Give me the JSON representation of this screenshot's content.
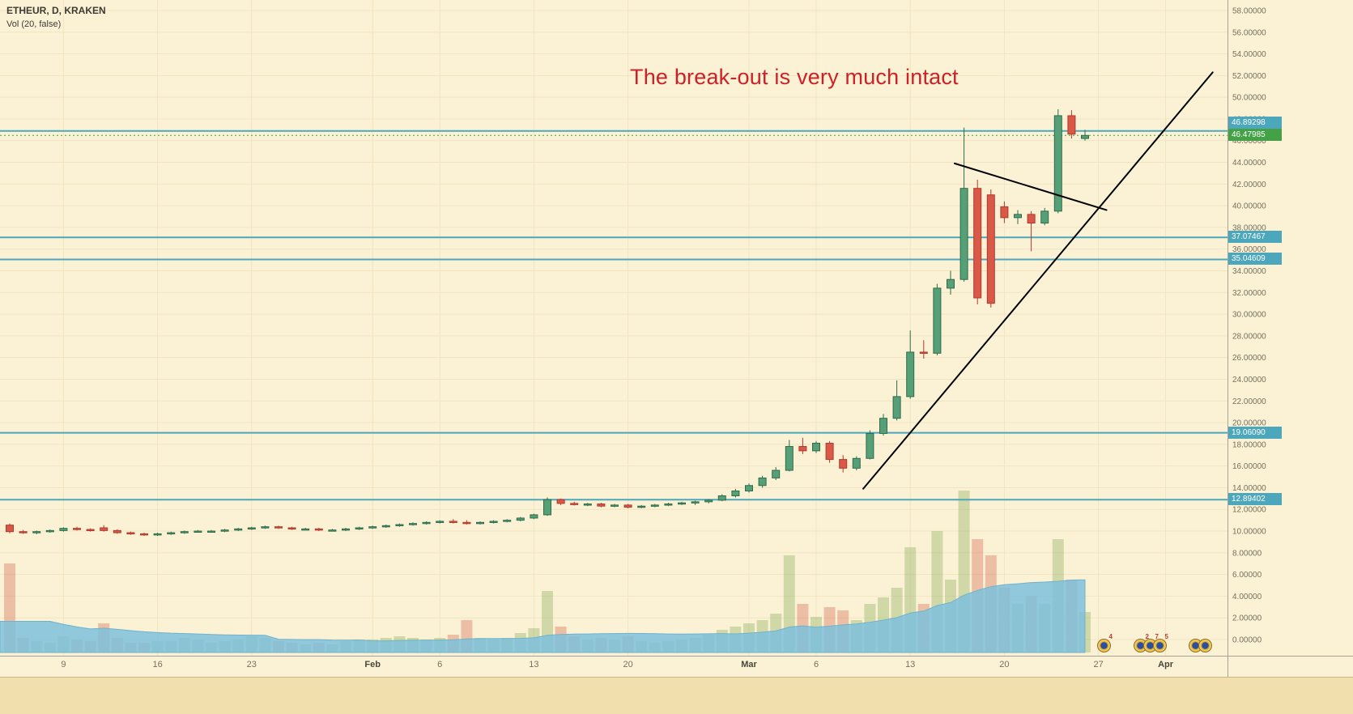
{
  "legend": {
    "symbol": "ETHEUR, D, KRAKEN",
    "indicator": "Vol (20, false)"
  },
  "annotation": {
    "text": "The break-out is very much intact",
    "color": "#cc2127"
  },
  "colors": {
    "background": "#fbf2d5",
    "grid": "#f0e4c0",
    "up": "#55a077",
    "up_border": "#2f6b4b",
    "down": "#d95848",
    "down_border": "#b03a2c",
    "vol_up": "rgba(128,168,82,0.35)",
    "vol_down": "rgba(214,104,84,0.38)",
    "vol_ma_fill": "rgba(126,193,220,0.85)",
    "vol_ma_edge": "#6fb3ce",
    "hline": "#4da7bc",
    "last_line": "#44a146",
    "trend": "#000000",
    "axis_text": "#75705f",
    "axis_text_major": "#4a463c",
    "separator": "#a9a296",
    "footer": "#f1dfae"
  },
  "price_axis": {
    "min": 0,
    "max": 58,
    "step": 2,
    "decimals": 5,
    "tags": [
      {
        "text": "46.89298",
        "value": 46.89298,
        "bg": "#4da7bc",
        "kind": "line"
      },
      {
        "text": "46.47985",
        "value": 46.47985,
        "bg": "#44a146",
        "kind": "last-price"
      },
      {
        "text": "37.07467",
        "value": 37.07467,
        "bg": "#4da7bc",
        "kind": "line"
      },
      {
        "text": "35.04609",
        "value": 35.04609,
        "bg": "#4da7bc",
        "kind": "line"
      },
      {
        "text": "19.06090",
        "value": 19.0609,
        "bg": "#4da7bc",
        "kind": "line"
      },
      {
        "text": "12.89402",
        "value": 12.89402,
        "bg": "#4da7bc",
        "kind": "line"
      }
    ]
  },
  "time_axis": {
    "labels": [
      {
        "label": "9",
        "day": 4,
        "major": false
      },
      {
        "label": "16",
        "day": 11,
        "major": false
      },
      {
        "label": "23",
        "day": 18,
        "major": false
      },
      {
        "label": "Feb",
        "day": 27,
        "major": true
      },
      {
        "label": "6",
        "day": 32,
        "major": false
      },
      {
        "label": "13",
        "day": 39,
        "major": false
      },
      {
        "label": "20",
        "day": 46,
        "major": false
      },
      {
        "label": "Mar",
        "day": 55,
        "major": true
      },
      {
        "label": "6",
        "day": 60,
        "major": false
      },
      {
        "label": "13",
        "day": 67,
        "major": false
      },
      {
        "label": "20",
        "day": 74,
        "major": false
      },
      {
        "label": "27",
        "day": 81,
        "major": false
      },
      {
        "label": "Apr",
        "day": 86,
        "major": true
      }
    ]
  },
  "chart_data": {
    "type": "candlestick",
    "title": "ETHEUR, D, KRAKEN",
    "indicator": "Vol (20, false)",
    "ylim": [
      0,
      58
    ],
    "volume_ma_length": 20,
    "last_price": {
      "value": 46.47985,
      "label": "46.47985"
    },
    "horizontal_lines": [
      {
        "price": 46.89298,
        "label": "46.89298"
      },
      {
        "price": 37.07467,
        "label": "37.07467"
      },
      {
        "price": 35.04609,
        "label": "35.04609"
      },
      {
        "price": 19.0609,
        "label": "19.06090"
      },
      {
        "price": 12.89402,
        "label": "12.89402"
      }
    ],
    "trendlines": [
      {
        "from_day": 63.5,
        "from_price": 13.9,
        "to_day": 89.5,
        "to_price": 52.3
      },
      {
        "from_day": 70.3,
        "from_price": 43.9,
        "to_day": 81.6,
        "to_price": 39.6
      }
    ],
    "candles": [
      {
        "t": "Jan 5",
        "o": 10.55,
        "h": 10.7,
        "l": 9.8,
        "c": 9.95,
        "v": 55
      },
      {
        "t": "Jan 6",
        "o": 9.95,
        "h": 10.1,
        "l": 9.75,
        "c": 9.85,
        "v": 9
      },
      {
        "t": "Jan 7",
        "o": 9.85,
        "h": 10.05,
        "l": 9.7,
        "c": 9.95,
        "v": 7
      },
      {
        "t": "Jan 8",
        "o": 9.95,
        "h": 10.15,
        "l": 9.85,
        "c": 10.05,
        "v": 6
      },
      {
        "t": "Jan 9",
        "o": 10.05,
        "h": 10.35,
        "l": 9.95,
        "c": 10.25,
        "v": 10
      },
      {
        "t": "Jan 10",
        "o": 10.25,
        "h": 10.4,
        "l": 10.05,
        "c": 10.15,
        "v": 8
      },
      {
        "t": "Jan 11",
        "o": 10.15,
        "h": 10.25,
        "l": 9.95,
        "c": 10.05,
        "v": 7
      },
      {
        "t": "Jan 12",
        "o": 10.3,
        "h": 10.55,
        "l": 9.95,
        "c": 10.05,
        "v": 18
      },
      {
        "t": "Jan 13",
        "o": 10.05,
        "h": 10.15,
        "l": 9.75,
        "c": 9.85,
        "v": 9
      },
      {
        "t": "Jan 14",
        "o": 9.85,
        "h": 9.95,
        "l": 9.65,
        "c": 9.75,
        "v": 6
      },
      {
        "t": "Jan 15",
        "o": 9.75,
        "h": 9.85,
        "l": 9.55,
        "c": 9.65,
        "v": 6
      },
      {
        "t": "Jan 16",
        "o": 9.65,
        "h": 9.85,
        "l": 9.55,
        "c": 9.75,
        "v": 7
      },
      {
        "t": "Jan 17",
        "o": 9.75,
        "h": 9.95,
        "l": 9.65,
        "c": 9.85,
        "v": 7
      },
      {
        "t": "Jan 18",
        "o": 9.85,
        "h": 10.05,
        "l": 9.75,
        "c": 9.95,
        "v": 9
      },
      {
        "t": "Jan 19",
        "o": 9.95,
        "h": 10.1,
        "l": 9.85,
        "c": 10.0,
        "v": 8
      },
      {
        "t": "Jan 20",
        "o": 10.0,
        "h": 10.1,
        "l": 9.9,
        "c": 10.0,
        "v": 6
      },
      {
        "t": "Jan 21",
        "o": 10.0,
        "h": 10.2,
        "l": 9.9,
        "c": 10.1,
        "v": 7
      },
      {
        "t": "Jan 22",
        "o": 10.1,
        "h": 10.3,
        "l": 10.0,
        "c": 10.2,
        "v": 8
      },
      {
        "t": "Jan 23",
        "o": 10.2,
        "h": 10.4,
        "l": 10.1,
        "c": 10.3,
        "v": 10
      },
      {
        "t": "Jan 24",
        "o": 10.3,
        "h": 10.5,
        "l": 10.2,
        "c": 10.4,
        "v": 9
      },
      {
        "t": "Jan 25",
        "o": 10.4,
        "h": 10.5,
        "l": 10.2,
        "c": 10.3,
        "v": 7
      },
      {
        "t": "Jan 26",
        "o": 10.3,
        "h": 10.4,
        "l": 10.1,
        "c": 10.2,
        "v": 6
      },
      {
        "t": "Jan 27",
        "o": 10.2,
        "h": 10.3,
        "l": 10.1,
        "c": 10.2,
        "v": 5
      },
      {
        "t": "Jan 28",
        "o": 10.2,
        "h": 10.3,
        "l": 10.0,
        "c": 10.1,
        "v": 6
      },
      {
        "t": "Jan 29",
        "o": 10.1,
        "h": 10.2,
        "l": 10.0,
        "c": 10.1,
        "v": 5
      },
      {
        "t": "Jan 30",
        "o": 10.1,
        "h": 10.3,
        "l": 10.0,
        "c": 10.2,
        "v": 7
      },
      {
        "t": "Jan 31",
        "o": 10.2,
        "h": 10.4,
        "l": 10.1,
        "c": 10.3,
        "v": 8
      },
      {
        "t": "Feb 1",
        "o": 10.3,
        "h": 10.5,
        "l": 10.2,
        "c": 10.4,
        "v": 8
      },
      {
        "t": "Feb 2",
        "o": 10.4,
        "h": 10.6,
        "l": 10.3,
        "c": 10.5,
        "v": 9
      },
      {
        "t": "Feb 3",
        "o": 10.5,
        "h": 10.7,
        "l": 10.4,
        "c": 10.6,
        "v": 10
      },
      {
        "t": "Feb 4",
        "o": 10.6,
        "h": 10.8,
        "l": 10.5,
        "c": 10.7,
        "v": 9
      },
      {
        "t": "Feb 5",
        "o": 10.7,
        "h": 10.9,
        "l": 10.6,
        "c": 10.8,
        "v": 8
      },
      {
        "t": "Feb 6",
        "o": 10.8,
        "h": 11.0,
        "l": 10.7,
        "c": 10.9,
        "v": 9
      },
      {
        "t": "Feb 7",
        "o": 10.9,
        "h": 11.1,
        "l": 10.7,
        "c": 10.8,
        "v": 11
      },
      {
        "t": "Feb 8",
        "o": 10.8,
        "h": 11.0,
        "l": 10.6,
        "c": 10.7,
        "v": 20
      },
      {
        "t": "Feb 9",
        "o": 10.7,
        "h": 10.9,
        "l": 10.6,
        "c": 10.8,
        "v": 9
      },
      {
        "t": "Feb 10",
        "o": 10.8,
        "h": 11.0,
        "l": 10.7,
        "c": 10.9,
        "v": 8
      },
      {
        "t": "Feb 11",
        "o": 10.9,
        "h": 11.1,
        "l": 10.8,
        "c": 11.0,
        "v": 9
      },
      {
        "t": "Feb 12",
        "o": 11.0,
        "h": 11.3,
        "l": 10.9,
        "c": 11.2,
        "v": 12
      },
      {
        "t": "Feb 13",
        "o": 11.2,
        "h": 11.6,
        "l": 11.1,
        "c": 11.5,
        "v": 15
      },
      {
        "t": "Feb 14",
        "o": 11.5,
        "h": 13.1,
        "l": 11.4,
        "c": 12.9,
        "v": 38
      },
      {
        "t": "Feb 15",
        "o": 12.9,
        "h": 13.0,
        "l": 12.4,
        "c": 12.55,
        "v": 16
      },
      {
        "t": "Feb 16",
        "o": 12.55,
        "h": 12.7,
        "l": 12.35,
        "c": 12.45,
        "v": 10
      },
      {
        "t": "Feb 17",
        "o": 12.45,
        "h": 12.6,
        "l": 12.3,
        "c": 12.5,
        "v": 8
      },
      {
        "t": "Feb 18",
        "o": 12.5,
        "h": 12.6,
        "l": 12.2,
        "c": 12.3,
        "v": 9
      },
      {
        "t": "Feb 19",
        "o": 12.3,
        "h": 12.5,
        "l": 12.2,
        "c": 12.4,
        "v": 8
      },
      {
        "t": "Feb 20",
        "o": 12.4,
        "h": 12.5,
        "l": 12.1,
        "c": 12.2,
        "v": 10
      },
      {
        "t": "Feb 21",
        "o": 12.2,
        "h": 12.4,
        "l": 12.1,
        "c": 12.3,
        "v": 7
      },
      {
        "t": "Feb 22",
        "o": 12.3,
        "h": 12.5,
        "l": 12.2,
        "c": 12.4,
        "v": 6
      },
      {
        "t": "Feb 23",
        "o": 12.4,
        "h": 12.6,
        "l": 12.3,
        "c": 12.5,
        "v": 7
      },
      {
        "t": "Feb 24",
        "o": 12.5,
        "h": 12.7,
        "l": 12.4,
        "c": 12.6,
        "v": 8
      },
      {
        "t": "Feb 25",
        "o": 12.6,
        "h": 12.8,
        "l": 12.4,
        "c": 12.7,
        "v": 9
      },
      {
        "t": "Feb 26",
        "o": 12.7,
        "h": 12.95,
        "l": 12.55,
        "c": 12.85,
        "v": 11
      },
      {
        "t": "Feb 27",
        "o": 12.85,
        "h": 13.4,
        "l": 12.75,
        "c": 13.25,
        "v": 14
      },
      {
        "t": "Feb 28",
        "o": 13.25,
        "h": 13.9,
        "l": 13.1,
        "c": 13.7,
        "v": 16
      },
      {
        "t": "Mar 1",
        "o": 13.7,
        "h": 14.4,
        "l": 13.55,
        "c": 14.2,
        "v": 18
      },
      {
        "t": "Mar 2",
        "o": 14.2,
        "h": 15.1,
        "l": 14.0,
        "c": 14.9,
        "v": 20
      },
      {
        "t": "Mar 3",
        "o": 14.9,
        "h": 15.9,
        "l": 14.7,
        "c": 15.6,
        "v": 24
      },
      {
        "t": "Mar 4",
        "o": 15.6,
        "h": 18.4,
        "l": 15.5,
        "c": 17.8,
        "v": 60
      },
      {
        "t": "Mar 5",
        "o": 17.8,
        "h": 18.6,
        "l": 17.1,
        "c": 17.4,
        "v": 30
      },
      {
        "t": "Mar 6",
        "o": 17.4,
        "h": 18.3,
        "l": 17.2,
        "c": 18.1,
        "v": 22
      },
      {
        "t": "Mar 7",
        "o": 18.1,
        "h": 18.3,
        "l": 16.3,
        "c": 16.6,
        "v": 28
      },
      {
        "t": "Mar 8",
        "o": 16.6,
        "h": 17.0,
        "l": 15.4,
        "c": 15.8,
        "v": 26
      },
      {
        "t": "Mar 9",
        "o": 15.8,
        "h": 16.9,
        "l": 15.6,
        "c": 16.7,
        "v": 20
      },
      {
        "t": "Mar 10",
        "o": 16.7,
        "h": 19.3,
        "l": 16.6,
        "c": 19.0,
        "v": 30
      },
      {
        "t": "Mar 11",
        "o": 19.0,
        "h": 20.8,
        "l": 18.8,
        "c": 20.4,
        "v": 34
      },
      {
        "t": "Mar 12",
        "o": 20.4,
        "h": 23.9,
        "l": 20.2,
        "c": 22.4,
        "v": 40
      },
      {
        "t": "Mar 13",
        "o": 22.4,
        "h": 28.5,
        "l": 22.2,
        "c": 26.5,
        "v": 65
      },
      {
        "t": "Mar 14",
        "o": 26.5,
        "h": 27.6,
        "l": 25.9,
        "c": 26.4,
        "v": 30
      },
      {
        "t": "Mar 15",
        "o": 26.4,
        "h": 32.8,
        "l": 26.2,
        "c": 32.4,
        "v": 75
      },
      {
        "t": "Mar 16",
        "o": 32.4,
        "h": 34.0,
        "l": 31.8,
        "c": 33.2,
        "v": 45
      },
      {
        "t": "Mar 17",
        "o": 33.2,
        "h": 47.2,
        "l": 33.0,
        "c": 41.6,
        "v": 100
      },
      {
        "t": "Mar 18",
        "o": 41.6,
        "h": 42.4,
        "l": 30.9,
        "c": 31.5,
        "v": 70
      },
      {
        "t": "Mar 19",
        "o": 41.0,
        "h": 41.5,
        "l": 30.6,
        "c": 31.0,
        "v": 60
      },
      {
        "t": "Mar 20",
        "o": 39.9,
        "h": 40.4,
        "l": 38.4,
        "c": 38.9,
        "v": 40
      },
      {
        "t": "Mar 21",
        "o": 38.9,
        "h": 39.6,
        "l": 38.3,
        "c": 39.2,
        "v": 30
      },
      {
        "t": "Mar 22",
        "o": 39.2,
        "h": 39.5,
        "l": 35.8,
        "c": 38.4,
        "v": 35
      },
      {
        "t": "Mar 23",
        "o": 38.4,
        "h": 39.8,
        "l": 38.2,
        "c": 39.5,
        "v": 30
      },
      {
        "t": "Mar 24",
        "o": 39.5,
        "h": 48.9,
        "l": 39.3,
        "c": 48.3,
        "v": 70
      },
      {
        "t": "Mar 25",
        "o": 48.3,
        "h": 48.8,
        "l": 46.2,
        "c": 46.6,
        "v": 45
      },
      {
        "t": "Mar 26",
        "o": 46.2,
        "h": 47.0,
        "l": 46.0,
        "c": 46.48,
        "v": 25
      }
    ]
  },
  "badges": {
    "groups": [
      {
        "icons": [
          {
            "count": "4"
          }
        ]
      },
      {
        "icons": [
          {
            "count": "2"
          },
          {
            "count": "7"
          },
          {
            "count": "5"
          }
        ]
      },
      {
        "icons": [
          {
            "count": ""
          },
          {
            "count": ""
          }
        ]
      }
    ]
  }
}
